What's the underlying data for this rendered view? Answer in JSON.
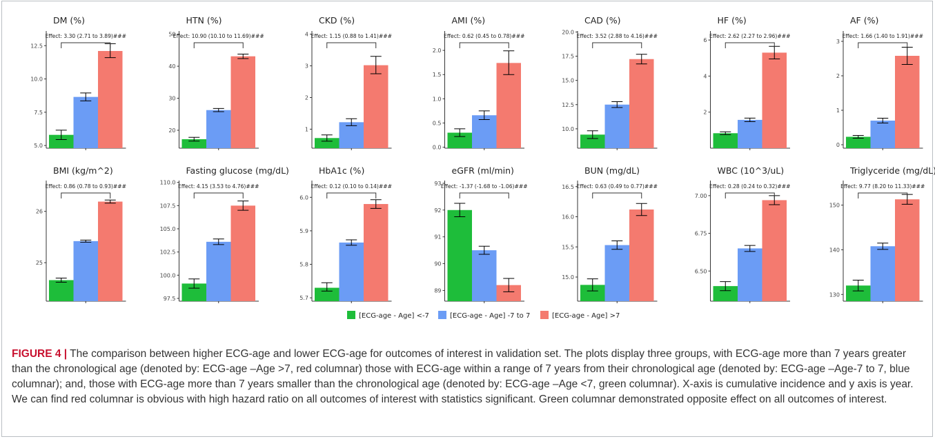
{
  "legend": [
    {
      "label": "[ECG-age - Age] <-7",
      "color": "#1ebd3a"
    },
    {
      "label": "[ECG-age - Age] -7 to 7",
      "color": "#6b9cf5"
    },
    {
      "label": "[ECG-age - Age] >7",
      "color": "#f47a6f"
    }
  ],
  "caption": {
    "lead": "FIGURE 4 |",
    "text": " The comparison between higher ECG-age and lower ECG-age for outcomes of interest in validation set. The plots display three groups, with ECG-age more than 7 years greater than the chronological age (denoted by: ECG-age –Age >7, red columnar) those with ECG-age within a range of 7 years from their chronological age (denoted by: ECG-age –Age-7 to 7, blue columnar); and, those with ECG-age more than 7 years smaller than the chronological age (denoted by: ECG-age –Age <7, green columnar). X-axis is cumulative incidence and y axis is year. We can find red columnar is obvious with high hazard ratio on all outcomes of interest with statistics significant. Green columnar demonstrated opposite effect on all outcomes of interest."
  },
  "chart_data": [
    {
      "type": "bar",
      "title": "DM (%)",
      "categories": [
        "[ECG-age - Age] <-7",
        "[ECG-age - Age] -7 to 7",
        "[ECG-age - Age] >7"
      ],
      "values": [
        5.8,
        8.65,
        12.1
      ],
      "errors": [
        [
          5.45,
          6.15
        ],
        [
          8.35,
          8.95
        ],
        [
          11.6,
          12.65
        ]
      ],
      "yticks": [
        "5.0",
        "7.5",
        "10.0",
        "12.5"
      ],
      "ylim": [
        4.8,
        13.6
      ],
      "effect": "Effect: 3.30 (2.71 to 3.89)###"
    },
    {
      "type": "bar",
      "title": "HTN (%)",
      "categories": [
        "[ECG-age - Age] <-7",
        "[ECG-age - Age] -7 to 7",
        "[ECG-age - Age] >7"
      ],
      "values": [
        17.2,
        26.3,
        43.1
      ],
      "errors": [
        [
          16.6,
          17.8
        ],
        [
          25.8,
          26.8
        ],
        [
          42.4,
          43.8
        ]
      ],
      "yticks": [
        "20",
        "30",
        "40",
        "50"
      ],
      "ylim": [
        14.4,
        51
      ],
      "effect": "Effect: 10.90 (10.10 to 11.69)###"
    },
    {
      "type": "bar",
      "title": "CKD (%)",
      "categories": [
        "[ECG-age - Age] <-7",
        "[ECG-age - Age] -7 to 7",
        "[ECG-age - Age] >7"
      ],
      "values": [
        0.72,
        1.22,
        3.02
      ],
      "errors": [
        [
          0.62,
          0.82
        ],
        [
          1.11,
          1.33
        ],
        [
          2.75,
          3.3
        ]
      ],
      "yticks": [
        "1",
        "2",
        "3",
        "4"
      ],
      "ylim": [
        0.4,
        4.1
      ],
      "effect": "Effect: 1.15 (0.88 to 1.41)###"
    },
    {
      "type": "bar",
      "title": "AMI (%)",
      "categories": [
        "[ECG-age - Age] <-7",
        "[ECG-age - Age] -7 to 7",
        "[ECG-age - Age] >7"
      ],
      "values": [
        0.3,
        0.66,
        1.74
      ],
      "errors": [
        [
          0.22,
          0.38
        ],
        [
          0.57,
          0.75
        ],
        [
          1.5,
          1.99
        ]
      ],
      "yticks": [
        "0.0",
        "0.5",
        "1.0",
        "1.5",
        "2.0"
      ],
      "ylim": [
        -0.02,
        2.4
      ],
      "effect": "Effect: 0.62 (0.45 to 0.78)###"
    },
    {
      "type": "bar",
      "title": "CAD (%)",
      "categories": [
        "[ECG-age - Age] <-7",
        "[ECG-age - Age] -7 to 7",
        "[ECG-age - Age] >7"
      ],
      "values": [
        9.4,
        12.5,
        17.2
      ],
      "errors": [
        [
          9,
          9.8
        ],
        [
          12.2,
          12.8
        ],
        [
          16.7,
          17.7
        ]
      ],
      "yticks": [
        "10.0",
        "12.5",
        "15.0",
        "17.5",
        "20.0"
      ],
      "ylim": [
        8,
        20.1
      ],
      "effect": "Effect: 3.52 (2.88 to 4.16)###"
    },
    {
      "type": "bar",
      "title": "HF (%)",
      "categories": [
        "[ECG-age - Age] <-7",
        "[ECG-age - Age] -7 to 7",
        "[ECG-age - Age] >7"
      ],
      "values": [
        0.83,
        1.57,
        5.3
      ],
      "errors": [
        [
          0.75,
          0.91
        ],
        [
          1.47,
          1.67
        ],
        [
          4.95,
          5.65
        ]
      ],
      "yticks": [
        "2",
        "4",
        "6"
      ],
      "ylim": [
        0,
        6.5
      ],
      "effect": "Effect: 2.62 (2.27 to 2.96)###"
    },
    {
      "type": "bar",
      "title": "AF (%)",
      "categories": [
        "[ECG-age - Age] <-7",
        "[ECG-age - Age] -7 to 7",
        "[ECG-age - Age] >7"
      ],
      "values": [
        0.23,
        0.7,
        2.58
      ],
      "errors": [
        [
          0.19,
          0.27
        ],
        [
          0.63,
          0.77
        ],
        [
          2.33,
          2.83
        ]
      ],
      "yticks": [
        "0",
        "1",
        "2",
        "3"
      ],
      "ylim": [
        -0.1,
        3.3
      ],
      "effect": "Effect: 1.66 (1.40 to 1.91)###"
    },
    {
      "type": "bar",
      "title": "BMI (kg/m^2)",
      "categories": [
        "[ECG-age - Age] <-7",
        "[ECG-age - Age] -7 to 7",
        "[ECG-age - Age] >7"
      ],
      "values": [
        24.66,
        25.42,
        26.19
      ],
      "errors": [
        [
          24.62,
          24.7
        ],
        [
          25.4,
          25.44
        ],
        [
          26.16,
          26.22
        ]
      ],
      "yticks": [
        "25",
        "26"
      ],
      "ylim": [
        24.25,
        26.6
      ],
      "effect": "Effect: 0.86 (0.78 to 0.93)###"
    },
    {
      "type": "bar",
      "title": "Fasting glucose (mg/dL)",
      "categories": [
        "[ECG-age - Age] <-7",
        "[ECG-age - Age] -7 to 7",
        "[ECG-age - Age] >7"
      ],
      "values": [
        99.1,
        103.6,
        107.5
      ],
      "errors": [
        [
          98.6,
          99.6
        ],
        [
          103.3,
          103.9
        ],
        [
          107,
          108
        ]
      ],
      "yticks": [
        "97.5",
        "100.0",
        "102.5",
        "105.0",
        "107.5",
        "110.0"
      ],
      "ylim": [
        97.2,
        110.2
      ],
      "effect": "Effect: 4.15 (3.53 to 4.76)###"
    },
    {
      "type": "bar",
      "title": "HbA1c (%)",
      "categories": [
        "[ECG-age - Age] <-7",
        "[ECG-age - Age] -7 to 7",
        "[ECG-age - Age] >7"
      ],
      "values": [
        5.73,
        5.865,
        5.98
      ],
      "errors": [
        [
          5.72,
          5.745
        ],
        [
          5.857,
          5.873
        ],
        [
          5.967,
          5.993
        ]
      ],
      "yticks": [
        "5.7",
        "5.8",
        "5.9",
        "6.0"
      ],
      "ylim": [
        5.69,
        6.05
      ],
      "effect": "Effect: 0.12 (0.10 to 0.14)###"
    },
    {
      "type": "bar",
      "title": "eGFR (ml/min)",
      "categories": [
        "[ECG-age - Age] <-7",
        "[ECG-age - Age] -7 to 7",
        "[ECG-age - Age] >7"
      ],
      "values": [
        92,
        90.5,
        89.2
      ],
      "errors": [
        [
          91.75,
          92.25
        ],
        [
          90.35,
          90.65
        ],
        [
          88.95,
          89.45
        ]
      ],
      "yticks": [
        "89",
        "90",
        "91",
        "92",
        "93"
      ],
      "ylim": [
        88.6,
        93.1
      ],
      "effect": "Effect: -1.37 (-1.68 to -1.06)###"
    },
    {
      "type": "bar",
      "title": "BUN (mg/dL)",
      "categories": [
        "[ECG-age - Age] <-7",
        "[ECG-age - Age] -7 to 7",
        "[ECG-age - Age] >7"
      ],
      "values": [
        14.87,
        15.53,
        16.12
      ],
      "errors": [
        [
          14.77,
          14.97
        ],
        [
          15.46,
          15.6
        ],
        [
          16.02,
          16.22
        ]
      ],
      "yticks": [
        "15.0",
        "15.5",
        "16.0",
        "16.5"
      ],
      "ylim": [
        14.6,
        16.6
      ],
      "effect": "Effect: 0.63 (0.49 to 0.77)###"
    },
    {
      "type": "bar",
      "title": "WBC (10^3/uL)",
      "categories": [
        "[ECG-age - Age] <-7",
        "[ECG-age - Age] -7 to 7",
        "[ECG-age - Age] >7"
      ],
      "values": [
        6.4,
        6.65,
        6.97
      ],
      "errors": [
        [
          6.37,
          6.43
        ],
        [
          6.63,
          6.67
        ],
        [
          6.94,
          7
        ]
      ],
      "yticks": [
        "6.50",
        "6.75",
        "7.00"
      ],
      "ylim": [
        6.3,
        7.1
      ],
      "effect": "Effect: 0.28 (0.24 to 0.32)###"
    },
    {
      "type": "bar",
      "title": "Triglyceride (mg/dL)",
      "categories": [
        "[ECG-age - Age] <-7",
        "[ECG-age - Age] -7 to 7",
        "[ECG-age - Age] >7"
      ],
      "values": [
        132,
        140.8,
        151.3
      ],
      "errors": [
        [
          130.8,
          133.2
        ],
        [
          140.1,
          141.5
        ],
        [
          150.2,
          152.4
        ]
      ],
      "yticks": [
        "130",
        "140",
        "150"
      ],
      "ylim": [
        128.5,
        155.5
      ],
      "effect": "Effect: 9.77 (8.20 to 11.33)###"
    }
  ]
}
